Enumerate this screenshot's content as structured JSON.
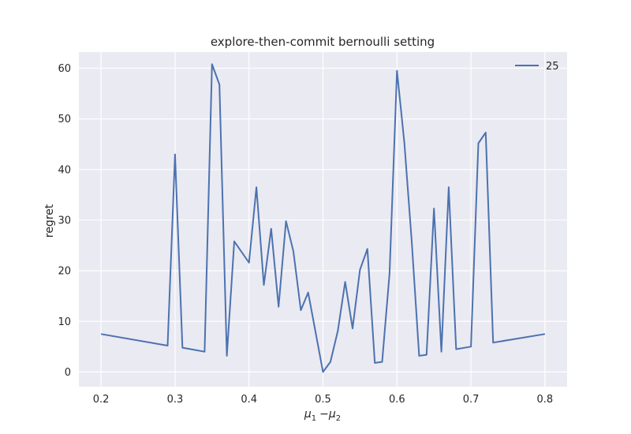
{
  "chart_data": {
    "type": "line",
    "title": "explore-then-commit bernoulli setting",
    "xlabel": "μ1 − μ2",
    "ylabel": "regret",
    "xlim": [
      0.17,
      0.83
    ],
    "ylim": [
      -2.9,
      63.2
    ],
    "xticks": [
      0.2,
      0.3,
      0.4,
      0.5,
      0.6,
      0.7,
      0.8
    ],
    "xtick_labels": [
      "0.2",
      "0.3",
      "0.4",
      "0.5",
      "0.6",
      "0.7",
      "0.8"
    ],
    "yticks": [
      0,
      10,
      20,
      30,
      40,
      50,
      60
    ],
    "ytick_labels": [
      "0",
      "10",
      "20",
      "30",
      "40",
      "50",
      "60"
    ],
    "grid": true,
    "legend_position": "top-right",
    "background_color": "#EAEAF2",
    "grid_color": "#FFFFFF",
    "series": [
      {
        "name": "25",
        "color": "#4C72B0",
        "points": [
          [
            0.2,
            7.5
          ],
          [
            0.29,
            5.2
          ],
          [
            0.3,
            43.0
          ],
          [
            0.31,
            4.8
          ],
          [
            0.34,
            4.0
          ],
          [
            0.35,
            60.8
          ],
          [
            0.36,
            56.8
          ],
          [
            0.37,
            3.2
          ],
          [
            0.38,
            25.8
          ],
          [
            0.4,
            21.6
          ],
          [
            0.41,
            36.5
          ],
          [
            0.42,
            17.2
          ],
          [
            0.43,
            28.3
          ],
          [
            0.44,
            12.9
          ],
          [
            0.45,
            29.8
          ],
          [
            0.46,
            23.8
          ],
          [
            0.47,
            12.2
          ],
          [
            0.48,
            15.7
          ],
          [
            0.5,
            0.0
          ],
          [
            0.51,
            2.0
          ],
          [
            0.52,
            8.1
          ],
          [
            0.53,
            17.8
          ],
          [
            0.54,
            8.6
          ],
          [
            0.55,
            20.2
          ],
          [
            0.56,
            24.3
          ],
          [
            0.57,
            1.8
          ],
          [
            0.58,
            2.0
          ],
          [
            0.59,
            19.5
          ],
          [
            0.6,
            59.5
          ],
          [
            0.61,
            45.2
          ],
          [
            0.62,
            25.8
          ],
          [
            0.63,
            3.2
          ],
          [
            0.64,
            3.4
          ],
          [
            0.65,
            32.3
          ],
          [
            0.66,
            4.0
          ],
          [
            0.67,
            36.5
          ],
          [
            0.68,
            4.5
          ],
          [
            0.7,
            5.0
          ],
          [
            0.71,
            45.2
          ],
          [
            0.72,
            47.3
          ],
          [
            0.73,
            5.8
          ],
          [
            0.8,
            7.5
          ]
        ]
      }
    ]
  }
}
